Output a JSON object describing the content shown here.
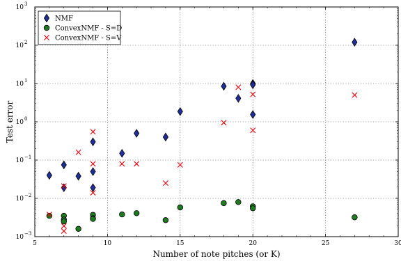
{
  "chart_data": {
    "type": "scatter",
    "xlabel": "Number of note pitches (or K)",
    "ylabel": "Test error",
    "xlim": [
      5,
      30
    ],
    "ylim": [
      0.001,
      1000
    ],
    "yscale": "log",
    "x_ticks": [
      5,
      10,
      15,
      20,
      25,
      30
    ],
    "x_tick_labels": [
      "5",
      "10",
      "15",
      "20",
      "25",
      "30"
    ],
    "y_ticks": [
      0.001,
      0.01,
      0.1,
      1,
      10,
      100,
      1000
    ],
    "y_tick_labels": [
      [
        "10",
        "−3"
      ],
      [
        "10",
        "−2"
      ],
      [
        "10",
        "−1"
      ],
      [
        "10",
        "0"
      ],
      [
        "10",
        "1"
      ],
      [
        "10",
        "2"
      ],
      [
        "10",
        "3"
      ]
    ],
    "grid": true,
    "legend_position": "top-left",
    "series": [
      {
        "name": "NMF",
        "marker": "diamond",
        "color": "#1f2f9a",
        "points": [
          [
            6,
            0.04
          ],
          [
            7,
            0.075
          ],
          [
            7,
            0.019
          ],
          [
            8,
            0.038
          ],
          [
            9,
            0.05
          ],
          [
            9,
            0.3
          ],
          [
            9,
            0.019
          ],
          [
            11,
            0.15
          ],
          [
            12,
            0.5
          ],
          [
            14,
            0.4
          ],
          [
            15,
            1.85
          ],
          [
            18,
            8.5
          ],
          [
            19,
            4.1
          ],
          [
            20,
            10
          ],
          [
            20,
            9.3
          ],
          [
            20,
            1.55
          ],
          [
            27,
            120
          ]
        ]
      },
      {
        "name": "ConvexNMF - S=D",
        "marker": "circle",
        "color": "#1e7a1e",
        "points": [
          [
            6,
            0.0035
          ],
          [
            7,
            0.0035
          ],
          [
            7,
            0.0028
          ],
          [
            7,
            0.0025
          ],
          [
            8,
            0.0016
          ],
          [
            9,
            0.0037
          ],
          [
            9,
            0.003
          ],
          [
            9,
            0.0029
          ],
          [
            11,
            0.0038
          ],
          [
            12,
            0.0041
          ],
          [
            14,
            0.0027
          ],
          [
            15,
            0.0058
          ],
          [
            18,
            0.0075
          ],
          [
            19,
            0.008
          ],
          [
            20,
            0.0062
          ],
          [
            20,
            0.0055
          ],
          [
            27,
            0.0032
          ]
        ]
      },
      {
        "name": "ConvexNMF - S=V",
        "marker": "x",
        "color": "#e8000b",
        "points": [
          [
            6,
            0.0038
          ],
          [
            7,
            0.021
          ],
          [
            7,
            0.0019
          ],
          [
            7,
            0.0014
          ],
          [
            8,
            0.16
          ],
          [
            9,
            0.55
          ],
          [
            9,
            0.08
          ],
          [
            9,
            0.014
          ],
          [
            11,
            0.08
          ],
          [
            12,
            0.08
          ],
          [
            14,
            0.025
          ],
          [
            15,
            0.075
          ],
          [
            18,
            0.95
          ],
          [
            19,
            8
          ],
          [
            20,
            5.2
          ],
          [
            20,
            0.6
          ],
          [
            27,
            5
          ]
        ]
      }
    ]
  }
}
